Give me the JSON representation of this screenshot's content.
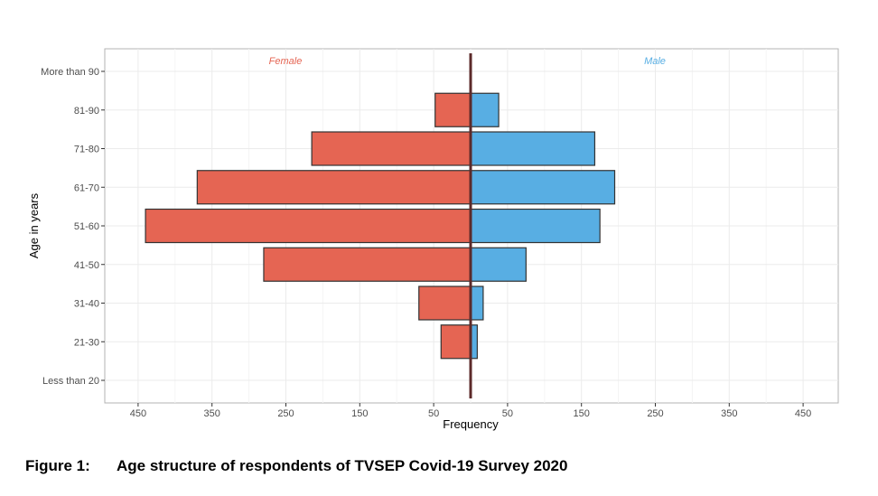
{
  "chart_data": {
    "type": "bar",
    "orientation": "horizontal-population-pyramid",
    "xlabel": "Frequency",
    "ylabel": "Age in years",
    "categories": [
      "Less than 20",
      "21-30",
      "31-40",
      "41-50",
      "51-60",
      "61-70",
      "71-80",
      "81-90",
      "More than 90"
    ],
    "series": [
      {
        "name": "Female",
        "color": "#e56553",
        "values": [
          1,
          40,
          70,
          280,
          440,
          370,
          215,
          48,
          1
        ]
      },
      {
        "name": "Male",
        "color": "#58aee3",
        "values": [
          1,
          9,
          17,
          75,
          175,
          195,
          168,
          38,
          1
        ]
      }
    ],
    "xtick_values": [
      -450,
      -350,
      -250,
      -150,
      -50,
      50,
      150,
      250,
      350,
      450
    ],
    "xtick_labels": [
      "450",
      "350",
      "250",
      "150",
      "50",
      "50",
      "150",
      "250",
      "350",
      "450"
    ],
    "xlim": [
      -450,
      450
    ],
    "grid": true,
    "center_line_color": "#5c2a2a",
    "bar_outline_color": "#333333"
  },
  "caption": {
    "label": "Figure 1:",
    "text": "Age structure of respondents of TVSEP Covid-19 Survey 2020"
  }
}
